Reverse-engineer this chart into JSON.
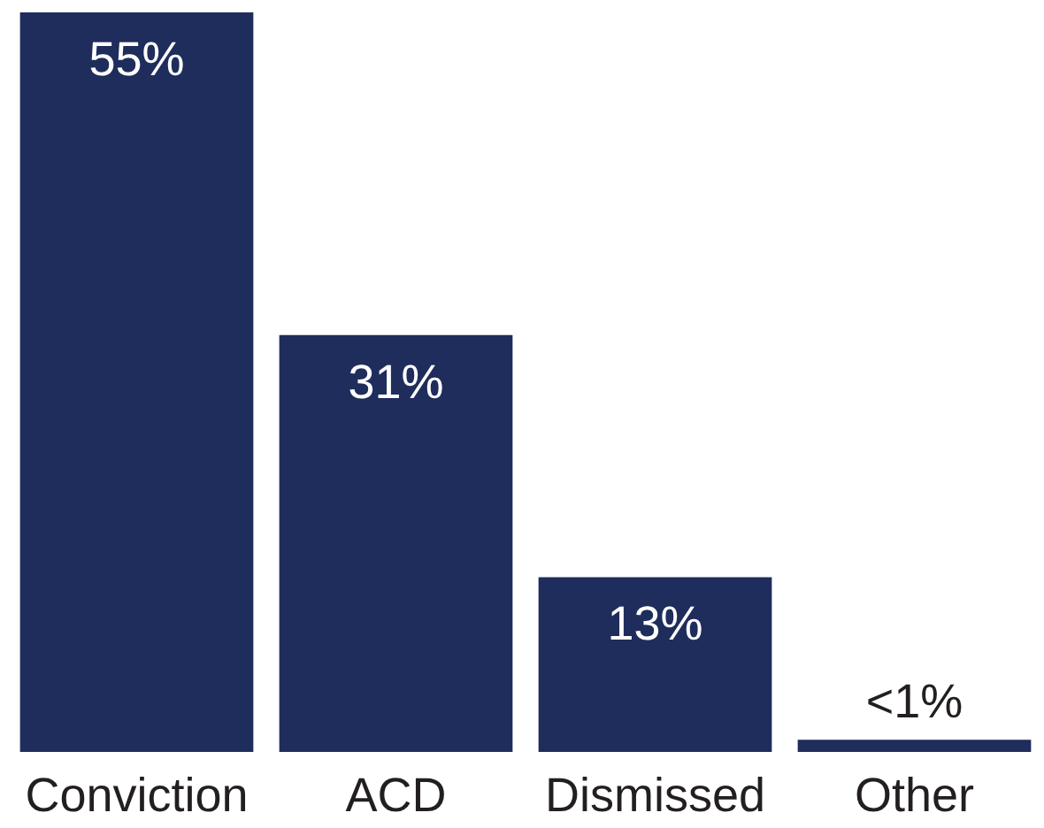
{
  "chart_data": {
    "type": "bar",
    "categories": [
      "Conviction",
      "ACD",
      "Dismissed",
      "Other"
    ],
    "values": [
      55,
      31,
      13,
      0.9
    ],
    "color": "#1f2d5c",
    "value_labels": [
      "55%",
      "31%",
      "13%",
      "<1%"
    ]
  }
}
